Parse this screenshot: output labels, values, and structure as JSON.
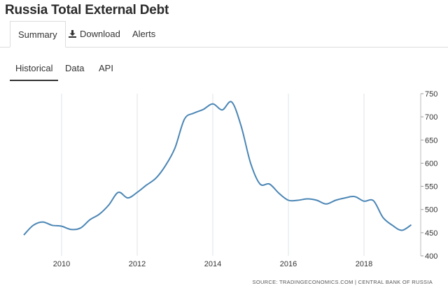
{
  "page": {
    "title": "Russia Total External Debt"
  },
  "tabs": {
    "summary": "Summary",
    "download": "Download",
    "alerts": "Alerts"
  },
  "subtabs": {
    "historical": "Historical",
    "data": "Data",
    "api": "API"
  },
  "icons": {
    "download": "download-icon"
  },
  "colors": {
    "line": "#4b86b5",
    "grid": "#dde3e8"
  },
  "chart_data": {
    "type": "line",
    "title": "",
    "xlabel": "",
    "ylabel": "",
    "xlim": [
      2009.0,
      2019.5
    ],
    "ylim": [
      400,
      750
    ],
    "x_ticks": [
      "2010",
      "2012",
      "2014",
      "2016",
      "2018"
    ],
    "y_ticks": [
      "400",
      "450",
      "500",
      "550",
      "600",
      "650",
      "700",
      "750"
    ],
    "grid": "vertical",
    "y_axis_side": "right",
    "source": "SOURCE: TRADINGECONOMICS.COM | CENTRAL BANK OF RUSSIA",
    "series": [
      {
        "values": [
          [
            2009.0,
            445
          ],
          [
            2009.25,
            466
          ],
          [
            2009.5,
            473
          ],
          [
            2009.75,
            466
          ],
          [
            2010.0,
            464
          ],
          [
            2010.25,
            457
          ],
          [
            2010.5,
            460
          ],
          [
            2010.75,
            478
          ],
          [
            2011.0,
            490
          ],
          [
            2011.25,
            510
          ],
          [
            2011.5,
            537
          ],
          [
            2011.75,
            525
          ],
          [
            2012.0,
            537
          ],
          [
            2012.25,
            553
          ],
          [
            2012.5,
            568
          ],
          [
            2012.75,
            595
          ],
          [
            2013.0,
            633
          ],
          [
            2013.25,
            695
          ],
          [
            2013.5,
            708
          ],
          [
            2013.75,
            716
          ],
          [
            2014.0,
            728
          ],
          [
            2014.25,
            715
          ],
          [
            2014.5,
            732
          ],
          [
            2014.75,
            680
          ],
          [
            2015.0,
            600
          ],
          [
            2015.25,
            555
          ],
          [
            2015.5,
            555
          ],
          [
            2015.75,
            535
          ],
          [
            2016.0,
            520
          ],
          [
            2016.25,
            520
          ],
          [
            2016.5,
            523
          ],
          [
            2016.75,
            520
          ],
          [
            2017.0,
            512
          ],
          [
            2017.25,
            520
          ],
          [
            2017.5,
            525
          ],
          [
            2017.75,
            528
          ],
          [
            2018.0,
            518
          ],
          [
            2018.25,
            519
          ],
          [
            2018.5,
            483
          ],
          [
            2018.75,
            466
          ],
          [
            2019.0,
            455
          ],
          [
            2019.25,
            467
          ]
        ]
      }
    ]
  }
}
